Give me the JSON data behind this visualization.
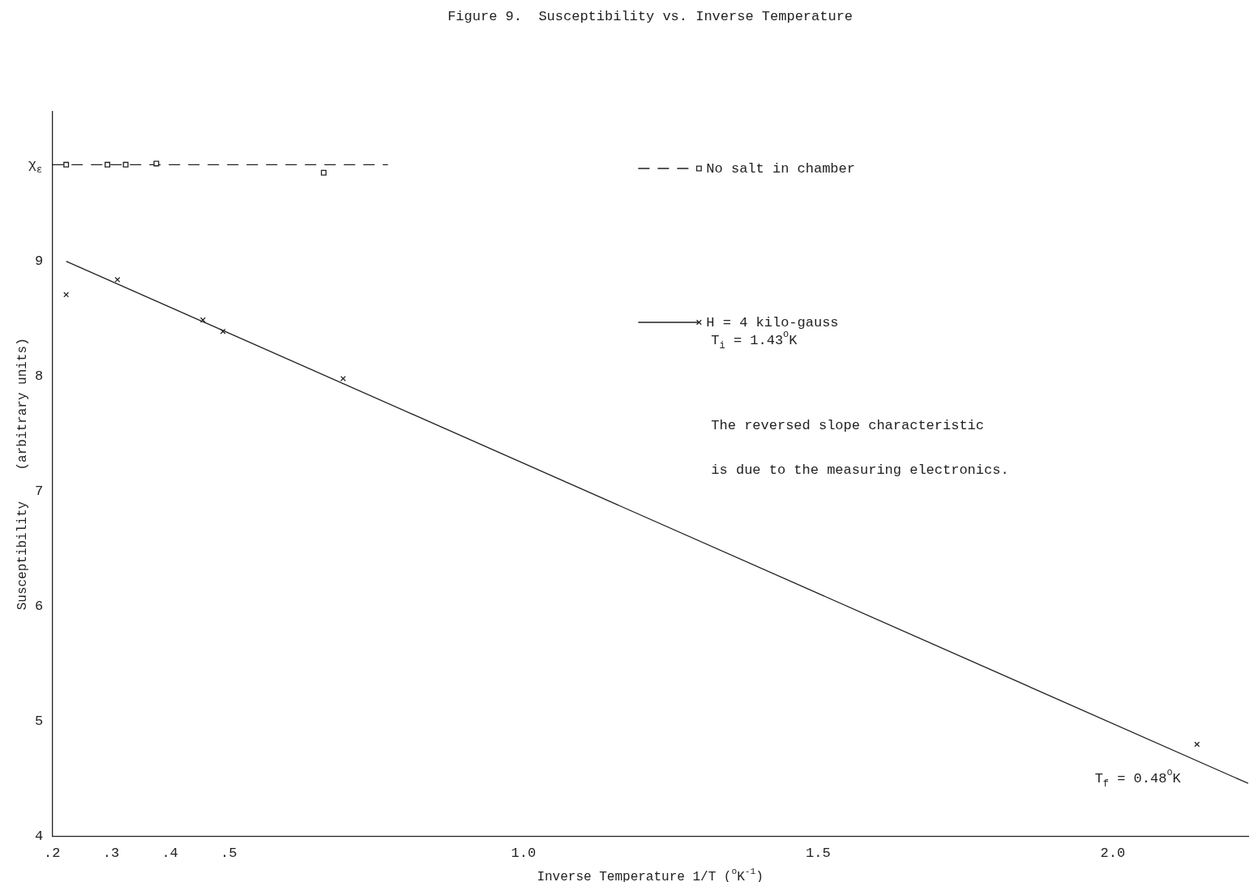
{
  "chart_data": {
    "type": "scatter",
    "title": "Figure 9.  Susceptibility vs. Inverse Temperature",
    "xlabel": "Inverse Temperature 1/T ($^{o}$K$^{-1}$)",
    "ylabel": "Susceptibility    (arbitrary units)",
    "xlim": [
      0.2,
      2.23
    ],
    "xticks": [
      {
        "value": 0.2,
        "label": ".2"
      },
      {
        "value": 0.3,
        "label": ".3"
      },
      {
        "value": 0.4,
        "label": ".4"
      },
      {
        "value": 0.5,
        "label": ".5"
      },
      {
        "value": 1.0,
        "label": "1.0"
      },
      {
        "value": 1.5,
        "label": "1.5"
      },
      {
        "value": 2.0,
        "label": "2.0"
      }
    ],
    "ylim": [
      4,
      10.3
    ],
    "yticks": [
      4,
      5,
      6,
      7,
      8,
      9,
      {
        "value": 9.84,
        "label": "χ$_{ε}$"
      }
    ],
    "grid": false,
    "legend": "top right",
    "series": [
      {
        "name": "No salt in chamber",
        "type": "scatter",
        "color": "#222222",
        "marker": "square",
        "line_style": "dashed",
        "x": [
          0.224,
          0.294,
          0.325,
          0.377,
          0.661
        ],
        "values": [
          9.84,
          9.84,
          9.84,
          9.85,
          9.77
        ]
      },
      {
        "type": "line",
        "color": "#222222",
        "marker": "none",
        "line_style": "dashed",
        "x": [
          0.2,
          0.77
        ],
        "values": [
          9.84,
          9.84
        ]
      },
      {
        "name": "H = 4 kilo-gauss",
        "type": "scatter",
        "color": "#222222",
        "marker": "cross",
        "line_style": "solid",
        "x": [
          0.224,
          0.311,
          0.456,
          0.49,
          0.694,
          2.143
        ],
        "values": [
          8.71,
          8.84,
          8.49,
          8.39,
          7.98,
          4.8
        ]
      },
      {
        "type": "line",
        "color": "#222222",
        "marker": "none",
        "line_style": "solid",
        "x": [
          0.224,
          2.23
        ],
        "values": [
          9.0,
          4.46
        ]
      }
    ],
    "annotations": [
      "T$_{i}$ = 1.43$^{o}$K",
      "The reversed slope characteristic",
      "is due to the measuring electronics.",
      {
        "text": "T$_{f}$ = 0.48$^{o}$K",
        "x": 2.143,
        "y": 4.8
      }
    ]
  }
}
